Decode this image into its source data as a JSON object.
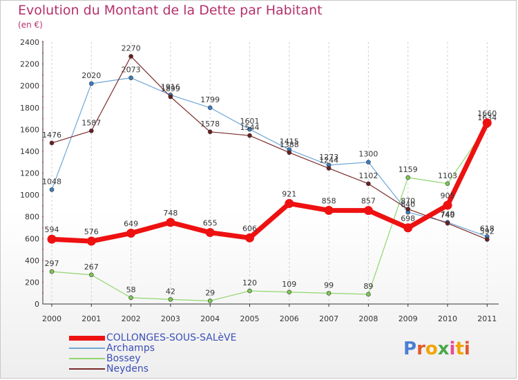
{
  "title": "Evolution du Montant de la Dette par Habitant",
  "unit": "(en €)",
  "legend": [
    {
      "label": "COLLONGES-SOUS-SALèVE",
      "color": "#ee1111"
    },
    {
      "label": "Archamps",
      "color": "#6fa6d6"
    },
    {
      "label": "Bossey",
      "color": "#8fd66c"
    },
    {
      "label": "Neydens",
      "color": "#7a2a2a"
    }
  ],
  "logo": {
    "text": "Proxiti",
    "colors": [
      "#4a7fd4",
      "#e25a2a",
      "#f2a500",
      "#4aa84a",
      "#e84a9a",
      "#f2a500",
      "#e25a2a"
    ]
  },
  "chart_data": {
    "type": "line",
    "x": [
      "2000",
      "2001",
      "2002",
      "2003",
      "2004",
      "2005",
      "2006",
      "2007",
      "2008",
      "2009",
      "2010",
      "2011"
    ],
    "ylim": [
      0,
      2400
    ],
    "yticks": [
      0,
      200,
      400,
      600,
      800,
      1000,
      1200,
      1400,
      1600,
      1800,
      2000,
      2200,
      2400
    ],
    "grid": "vertical-dashed",
    "legend_position": "bottom-left",
    "series": [
      {
        "name": "Archamps",
        "color": "#6fa6d6",
        "marker": "#3a7dc0",
        "width": 1.2,
        "values": [
          1048,
          2020,
          2073,
          1916,
          1799,
          1601,
          1415,
          1273,
          1300,
          840,
          749,
          618
        ]
      },
      {
        "name": "Bossey",
        "color": "#8fd66c",
        "marker": "#7cc850",
        "width": 1.2,
        "values": [
          297,
          267,
          58,
          42,
          29,
          120,
          109,
          99,
          89,
          1159,
          1103,
          1634
        ]
      },
      {
        "name": "Neydens",
        "color": "#7a2a2a",
        "marker": "#6b1f1f",
        "width": 1.2,
        "values": [
          1476,
          1587,
          2270,
          1899,
          1578,
          1544,
          1388,
          1244,
          1102,
          870,
          740,
          592
        ]
      },
      {
        "name": "COLLONGES-SOUS-SALèVE",
        "color": "#ee1111",
        "marker": "#ee1111",
        "width": 7,
        "values": [
          594,
          576,
          649,
          748,
          655,
          606,
          921,
          858,
          857,
          698,
          905,
          1660
        ]
      }
    ]
  }
}
